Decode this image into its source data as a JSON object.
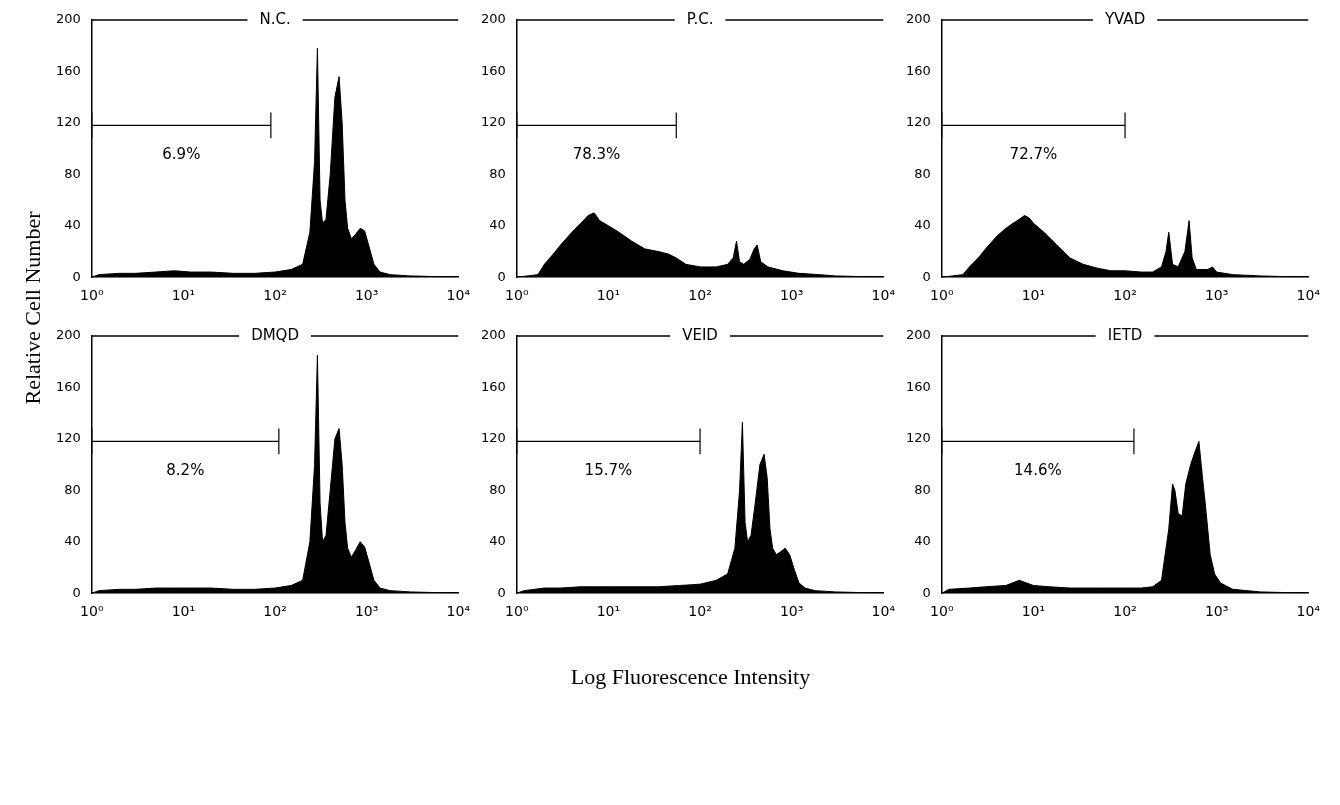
{
  "chart_data": [
    {
      "type": "area",
      "title": "N.C.",
      "ylabel": "Relative Cell Number",
      "log": "x",
      "xlim": [
        1,
        10000
      ],
      "ylim": [
        0,
        200
      ],
      "xticks": [
        {
          "value": 1,
          "label": "10⁰"
        },
        {
          "value": 10,
          "label": "10¹"
        },
        {
          "value": 100,
          "label": "10²"
        },
        {
          "value": 1000,
          "label": "10³"
        },
        {
          "value": 10000,
          "label": "10⁴"
        }
      ],
      "yticks": [
        0,
        40,
        80,
        120,
        160,
        200
      ],
      "series": [
        {
          "color": "#000000",
          "x": [
            1,
            1.2,
            2,
            3,
            5,
            8,
            12,
            20,
            35,
            60,
            100,
            150,
            200,
            240,
            270,
            290,
            310,
            330,
            360,
            400,
            450,
            500,
            540,
            580,
            620,
            680,
            750,
            850,
            950,
            1050,
            1200,
            1400,
            1800,
            3000,
            10000
          ],
          "values": [
            0,
            2,
            3,
            3,
            4,
            5,
            4,
            4,
            3,
            3,
            4,
            6,
            10,
            35,
            90,
            178,
            60,
            42,
            45,
            80,
            140,
            156,
            120,
            60,
            38,
            30,
            33,
            38,
            36,
            25,
            10,
            4,
            2,
            1,
            0
          ]
        },
        {
          "type": "line",
          "color": "#000000",
          "x": [
            1,
            90
          ],
          "values": [
            118,
            118
          ],
          "errors": [
            10,
            10
          ]
        }
      ],
      "annotations": [
        "6.9%"
      ]
    },
    {
      "type": "area",
      "title": "P.C.",
      "log": "x",
      "xlim": [
        1,
        10000
      ],
      "ylim": [
        0,
        200
      ],
      "xticks": [
        {
          "value": 1,
          "label": "10⁰"
        },
        {
          "value": 10,
          "label": "10¹"
        },
        {
          "value": 100,
          "label": "10²"
        },
        {
          "value": 1000,
          "label": "10³"
        },
        {
          "value": 10000,
          "label": "10⁴"
        }
      ],
      "yticks": [
        0,
        40,
        80,
        120,
        160,
        200
      ],
      "series": [
        {
          "color": "#000000",
          "x": [
            1,
            1.7,
            2,
            2.5,
            3,
            4,
            5,
            6,
            7,
            8,
            10,
            13,
            18,
            25,
            35,
            45,
            55,
            70,
            100,
            150,
            200,
            230,
            250,
            270,
            300,
            350,
            390,
            420,
            460,
            550,
            800,
            1200,
            2000,
            3000,
            10000
          ],
          "values": [
            0,
            2,
            10,
            18,
            25,
            35,
            42,
            48,
            50,
            44,
            40,
            35,
            28,
            22,
            20,
            18,
            15,
            10,
            8,
            8,
            10,
            15,
            28,
            12,
            10,
            14,
            22,
            25,
            12,
            8,
            5,
            3,
            2,
            1,
            0
          ]
        },
        {
          "type": "line",
          "color": "#000000",
          "x": [
            1,
            55
          ],
          "values": [
            118,
            118
          ],
          "errors": [
            10,
            10
          ]
        }
      ],
      "annotations": [
        "78.3%"
      ]
    },
    {
      "type": "area",
      "title": "YVAD",
      "log": "x",
      "xlim": [
        1,
        10000
      ],
      "ylim": [
        0,
        200
      ],
      "xticks": [
        {
          "value": 1,
          "label": "10⁰"
        },
        {
          "value": 10,
          "label": "10¹"
        },
        {
          "value": 100,
          "label": "10²"
        },
        {
          "value": 1000,
          "label": "10³"
        },
        {
          "value": 10000,
          "label": "10⁴"
        }
      ],
      "yticks": [
        0,
        40,
        80,
        120,
        160,
        200
      ],
      "series": [
        {
          "color": "#000000",
          "x": [
            1,
            1.7,
            2,
            2.5,
            3,
            4,
            5,
            6,
            7,
            8,
            9,
            10,
            13,
            18,
            25,
            35,
            50,
            70,
            100,
            150,
            200,
            250,
            280,
            300,
            330,
            380,
            450,
            500,
            540,
            600,
            800,
            900,
            1000,
            1500,
            3000,
            10000
          ],
          "values": [
            0,
            2,
            8,
            15,
            22,
            32,
            38,
            42,
            45,
            48,
            46,
            42,
            35,
            25,
            15,
            10,
            7,
            5,
            5,
            4,
            4,
            8,
            20,
            35,
            10,
            8,
            20,
            44,
            15,
            6,
            6,
            8,
            4,
            2,
            1,
            0
          ]
        },
        {
          "type": "line",
          "color": "#000000",
          "x": [
            1,
            100
          ],
          "values": [
            118,
            118
          ],
          "errors": [
            10,
            10
          ]
        }
      ],
      "annotations": [
        "72.7%"
      ]
    },
    {
      "type": "area",
      "title": "DMQD",
      "log": "x",
      "xlim": [
        1,
        10000
      ],
      "ylim": [
        0,
        200
      ],
      "xticks": [
        {
          "value": 1,
          "label": "10⁰"
        },
        {
          "value": 10,
          "label": "10¹"
        },
        {
          "value": 100,
          "label": "10²"
        },
        {
          "value": 1000,
          "label": "10³"
        },
        {
          "value": 10000,
          "label": "10⁴"
        }
      ],
      "yticks": [
        0,
        40,
        80,
        120,
        160,
        200
      ],
      "series": [
        {
          "color": "#000000",
          "x": [
            1,
            1.2,
            2,
            3,
            5,
            8,
            12,
            20,
            35,
            60,
            100,
            150,
            200,
            240,
            270,
            290,
            310,
            330,
            360,
            400,
            450,
            500,
            540,
            580,
            620,
            680,
            750,
            850,
            950,
            1050,
            1200,
            1400,
            1800,
            3000,
            10000
          ],
          "values": [
            0,
            2,
            3,
            3,
            4,
            4,
            4,
            4,
            3,
            3,
            4,
            6,
            10,
            40,
            100,
            185,
            70,
            40,
            45,
            80,
            120,
            128,
            100,
            55,
            35,
            28,
            33,
            40,
            36,
            25,
            10,
            4,
            2,
            1,
            0
          ]
        },
        {
          "type": "line",
          "color": "#000000",
          "x": [
            1,
            110
          ],
          "values": [
            118,
            118
          ],
          "errors": [
            10,
            10
          ]
        }
      ],
      "annotations": [
        "8.2%"
      ]
    },
    {
      "type": "area",
      "title": "VEID",
      "xlabel": "Log Fluorescence Intensity",
      "log": "x",
      "xlim": [
        1,
        10000
      ],
      "ylim": [
        0,
        200
      ],
      "xticks": [
        {
          "value": 1,
          "label": "10⁰"
        },
        {
          "value": 10,
          "label": "10¹"
        },
        {
          "value": 100,
          "label": "10²"
        },
        {
          "value": 1000,
          "label": "10³"
        },
        {
          "value": 10000,
          "label": "10⁴"
        }
      ],
      "yticks": [
        0,
        40,
        80,
        120,
        160,
        200
      ],
      "series": [
        {
          "color": "#000000",
          "x": [
            1,
            1.2,
            2,
            3,
            5,
            8,
            12,
            20,
            35,
            60,
            100,
            150,
            200,
            240,
            270,
            290,
            310,
            330,
            360,
            400,
            450,
            500,
            540,
            580,
            620,
            680,
            750,
            850,
            950,
            1050,
            1200,
            1400,
            1800,
            3000,
            10000
          ],
          "values": [
            0,
            2,
            4,
            4,
            5,
            5,
            5,
            5,
            5,
            6,
            7,
            10,
            15,
            35,
            80,
            133,
            55,
            40,
            45,
            70,
            100,
            108,
            90,
            50,
            35,
            30,
            32,
            35,
            30,
            20,
            8,
            4,
            2,
            1,
            0
          ]
        },
        {
          "type": "line",
          "color": "#000000",
          "x": [
            1,
            100
          ],
          "values": [
            118,
            118
          ],
          "errors": [
            10,
            10
          ]
        }
      ],
      "annotations": [
        "15.7%"
      ]
    },
    {
      "type": "area",
      "title": "IETD",
      "log": "x",
      "xlim": [
        1,
        10000
      ],
      "ylim": [
        0,
        200
      ],
      "xticks": [
        {
          "value": 1,
          "label": "10⁰"
        },
        {
          "value": 10,
          "label": "10¹"
        },
        {
          "value": 100,
          "label": "10²"
        },
        {
          "value": 1000,
          "label": "10³"
        },
        {
          "value": 10000,
          "label": "10⁴"
        }
      ],
      "yticks": [
        0,
        40,
        80,
        120,
        160,
        200
      ],
      "series": [
        {
          "color": "#000000",
          "x": [
            1,
            1.2,
            2,
            3,
            5,
            7,
            10,
            15,
            25,
            50,
            100,
            150,
            200,
            250,
            300,
            330,
            350,
            380,
            420,
            460,
            520,
            580,
            640,
            700,
            750,
            850,
            950,
            1100,
            1500,
            3000,
            10000
          ],
          "values": [
            0,
            3,
            4,
            5,
            6,
            10,
            6,
            5,
            4,
            4,
            4,
            4,
            5,
            10,
            50,
            85,
            80,
            62,
            60,
            85,
            100,
            110,
            118,
            90,
            70,
            30,
            15,
            8,
            3,
            1,
            0
          ]
        },
        {
          "type": "line",
          "color": "#000000",
          "x": [
            1,
            125
          ],
          "values": [
            118,
            118
          ],
          "errors": [
            10,
            10
          ]
        }
      ],
      "annotations": [
        "14.6%"
      ]
    }
  ]
}
